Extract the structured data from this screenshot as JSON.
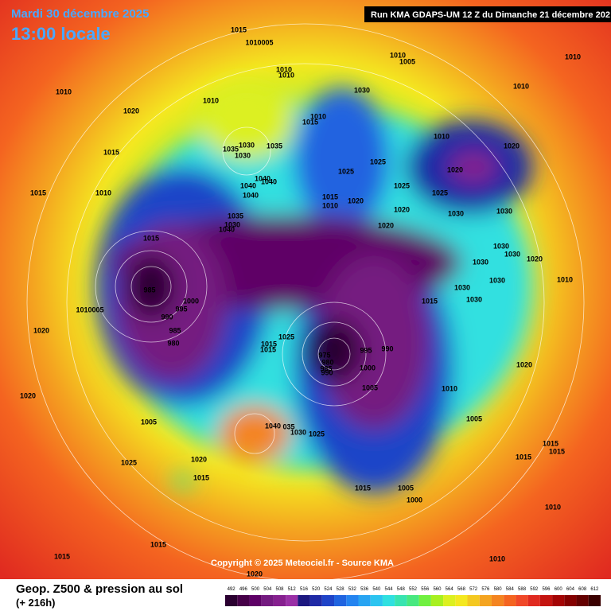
{
  "header": {
    "date": "Mardi 30 décembre 2025",
    "time": "13:00 locale",
    "run": "Run KMA GDAPS-UM 12 Z du Dimanche 21 décembre 202"
  },
  "copyright": "Copyright © 2025 Meteociel.fr - Source KMA",
  "footer": {
    "title": "Geop. Z500 & pression au sol",
    "lead": "(+ 216h)"
  },
  "legend": {
    "levels": [
      492,
      496,
      500,
      504,
      508,
      512,
      516,
      520,
      524,
      528,
      532,
      536,
      540,
      544,
      548,
      552,
      556,
      560,
      564,
      568,
      572,
      576,
      580,
      584,
      588,
      592,
      596,
      600,
      604,
      608,
      612
    ],
    "colors": [
      "#2a0030",
      "#460048",
      "#5e0066",
      "#741a80",
      "#86208f",
      "#9a30a6",
      "#1c1880",
      "#1f2aa6",
      "#1f44c8",
      "#2064e0",
      "#2484f0",
      "#28a4f2",
      "#2cc4f0",
      "#30e0e0",
      "#38e4b0",
      "#48e880",
      "#70f040",
      "#a8f020",
      "#dcf020",
      "#f4e820",
      "#f4c820",
      "#f4a420",
      "#f48420",
      "#f46420",
      "#f04828",
      "#e02a20",
      "#c41410",
      "#a40404",
      "#840000",
      "#640000",
      "#3a0000"
    ]
  },
  "pressure_labels": [
    "1015",
    "1010005",
    "1010",
    "1005",
    "1010",
    "1010",
    "1010",
    "1010",
    "1020",
    "1010",
    "1030",
    "1010",
    "1015",
    "1010",
    "1010",
    "1020",
    "1015",
    "1035",
    "1035",
    "1030",
    "1030",
    "1025",
    "1025",
    "1020",
    "1040",
    "1040",
    "1040",
    "1040",
    "1015",
    "1010",
    "1015",
    "1020",
    "1025",
    "1025",
    "1010",
    "1020",
    "1030",
    "1030",
    "1035",
    "1030",
    "1040",
    "1020",
    "1015",
    "1030",
    "1030",
    "1030",
    "1020",
    "985",
    "1010",
    "1030",
    "1030",
    "1030",
    "1000",
    "995",
    "1010005",
    "990",
    "1015",
    "985",
    "1025",
    "1020",
    "980",
    "1015",
    "1015",
    "975",
    "995",
    "990",
    "980",
    "985",
    "990",
    "1000",
    "1020",
    "1005",
    "1010",
    "1020",
    "1005",
    "1005",
    "1040",
    "035",
    "1030",
    "1025",
    "1015",
    "1015",
    "1025",
    "1020",
    "1015",
    "1015",
    "1015",
    "1005",
    "1000",
    "1010",
    "1015",
    "1015",
    "1010",
    "1020"
  ]
}
